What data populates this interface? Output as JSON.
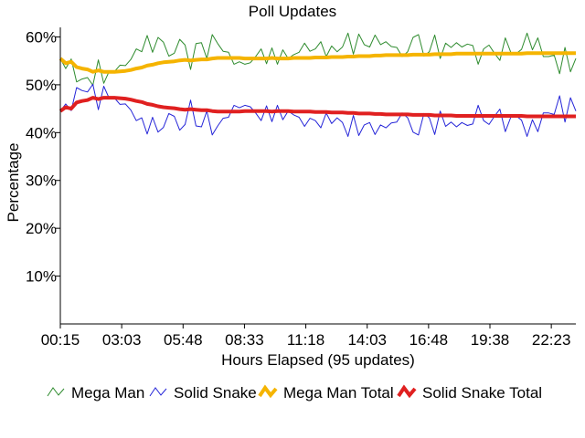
{
  "chart_data": {
    "type": "line",
    "title": "Poll Updates",
    "xlabel": "Hours Elapsed (95 updates)",
    "ylabel": "Percentage",
    "ylim": [
      0,
      62
    ],
    "y_ticks": [
      10,
      20,
      30,
      40,
      50,
      60
    ],
    "y_tick_labels": [
      "10%",
      "20%",
      "30%",
      "40%",
      "50%",
      "60%"
    ],
    "x_ticks": [
      "00:15",
      "03:03",
      "05:48",
      "08:33",
      "11:18",
      "14:03",
      "16:48",
      "19:38",
      "22:23"
    ],
    "grid": false,
    "legend_position": "bottom",
    "series": [
      {
        "name": "Mega Man",
        "color": "#2e8b2e",
        "style": "thin",
        "values": [
          55.5,
          53.4,
          55.4,
          50.6,
          51.2,
          51.5,
          49.9,
          55.2,
          50.3,
          52.8,
          52.8,
          54.1,
          54.0,
          55.3,
          57.5,
          56.9,
          60.3,
          56.8,
          59.9,
          58.9,
          56.0,
          56.6,
          59.5,
          58.3,
          53.2,
          58.6,
          58.8,
          55.5,
          60.5,
          58.6,
          57.0,
          56.8,
          54.3,
          54.8,
          54.3,
          54.6,
          55.9,
          57.5,
          54.4,
          57.7,
          54.3,
          57.3,
          55.5,
          56.3,
          56.8,
          58.7,
          57.0,
          57.5,
          59.0,
          55.9,
          58.1,
          56.9,
          57.9,
          60.8,
          56.4,
          60.6,
          58.4,
          57.9,
          60.4,
          58.4,
          59.0,
          58.0,
          57.8,
          55.9,
          56.9,
          59.9,
          60.5,
          56.0,
          56.9,
          60.4,
          55.5,
          58.7,
          57.8,
          58.8,
          57.9,
          58.5,
          58.2,
          54.3,
          57.5,
          58.3,
          56.6,
          55.1,
          59.8,
          56.8,
          56.5,
          57.4,
          60.8,
          57.3,
          59.8,
          55.9,
          55.9,
          56.2,
          52.3,
          57.8,
          52.7,
          55.5
        ]
      },
      {
        "name": "Solid Snake",
        "color": "#2424d8",
        "style": "thin",
        "values": [
          44.5,
          46.0,
          44.6,
          49.4,
          48.8,
          48.5,
          50.1,
          44.8,
          49.7,
          47.2,
          47.2,
          45.9,
          46.0,
          44.7,
          42.5,
          43.1,
          39.7,
          43.2,
          40.1,
          41.1,
          44.0,
          43.4,
          40.5,
          41.7,
          46.8,
          41.4,
          41.2,
          44.5,
          39.5,
          41.4,
          43.0,
          43.2,
          45.7,
          45.2,
          45.7,
          45.4,
          44.1,
          42.5,
          45.6,
          42.3,
          45.7,
          42.7,
          44.5,
          43.7,
          43.2,
          41.3,
          43.0,
          42.5,
          41.0,
          44.1,
          41.9,
          43.1,
          42.1,
          39.2,
          43.6,
          39.4,
          41.6,
          42.1,
          39.6,
          41.6,
          41.0,
          42.0,
          42.2,
          44.1,
          43.1,
          40.1,
          39.5,
          44.0,
          43.1,
          39.6,
          44.5,
          41.3,
          42.2,
          41.2,
          42.1,
          41.5,
          41.8,
          45.7,
          42.5,
          41.7,
          43.4,
          44.9,
          40.2,
          43.2,
          43.5,
          42.6,
          39.2,
          42.7,
          40.2,
          44.1,
          44.1,
          43.8,
          47.7,
          42.2,
          47.3,
          44.5
        ]
      },
      {
        "name": "Mega Man Total",
        "color": "#f5b400",
        "style": "thick",
        "values": [
          55.5,
          54.5,
          54.8,
          53.7,
          53.4,
          53.2,
          52.7,
          53.0,
          52.7,
          52.7,
          52.7,
          52.8,
          52.9,
          53.1,
          53.4,
          53.6,
          54.0,
          54.2,
          54.5,
          54.7,
          54.8,
          54.9,
          55.1,
          55.2,
          55.1,
          55.2,
          55.3,
          55.3,
          55.5,
          55.6,
          55.6,
          55.6,
          55.6,
          55.6,
          55.5,
          55.5,
          55.5,
          55.5,
          55.5,
          55.6,
          55.5,
          55.5,
          55.5,
          55.6,
          55.6,
          55.6,
          55.6,
          55.7,
          55.7,
          55.7,
          55.8,
          55.8,
          55.8,
          55.9,
          55.9,
          56.0,
          56.0,
          56.0,
          56.1,
          56.1,
          56.2,
          56.2,
          56.2,
          56.2,
          56.2,
          56.3,
          56.3,
          56.3,
          56.3,
          56.4,
          56.4,
          56.4,
          56.4,
          56.5,
          56.5,
          56.5,
          56.5,
          56.5,
          56.5,
          56.5,
          56.5,
          56.5,
          56.5,
          56.5,
          56.5,
          56.5,
          56.6,
          56.6,
          56.6,
          56.6,
          56.6,
          56.6,
          56.6,
          56.6,
          56.6,
          56.6
        ]
      },
      {
        "name": "Solid Snake Total",
        "color": "#e02020",
        "style": "thick",
        "values": [
          44.5,
          45.3,
          45.0,
          46.3,
          46.6,
          46.8,
          47.3,
          47.0,
          47.3,
          47.3,
          47.3,
          47.2,
          47.1,
          46.9,
          46.6,
          46.4,
          46.0,
          45.8,
          45.5,
          45.3,
          45.2,
          45.1,
          44.9,
          44.8,
          44.9,
          44.8,
          44.7,
          44.7,
          44.5,
          44.4,
          44.4,
          44.4,
          44.4,
          44.4,
          44.5,
          44.5,
          44.5,
          44.5,
          44.5,
          44.4,
          44.5,
          44.5,
          44.5,
          44.4,
          44.4,
          44.4,
          44.4,
          44.3,
          44.3,
          44.3,
          44.2,
          44.2,
          44.2,
          44.1,
          44.1,
          44.0,
          44.0,
          44.0,
          43.9,
          43.9,
          43.8,
          43.8,
          43.8,
          43.8,
          43.8,
          43.7,
          43.7,
          43.7,
          43.7,
          43.6,
          43.6,
          43.6,
          43.6,
          43.5,
          43.5,
          43.5,
          43.5,
          43.5,
          43.5,
          43.5,
          43.5,
          43.5,
          43.5,
          43.5,
          43.5,
          43.5,
          43.4,
          43.4,
          43.4,
          43.4,
          43.4,
          43.4,
          43.4,
          43.4,
          43.4,
          43.4
        ]
      }
    ]
  }
}
